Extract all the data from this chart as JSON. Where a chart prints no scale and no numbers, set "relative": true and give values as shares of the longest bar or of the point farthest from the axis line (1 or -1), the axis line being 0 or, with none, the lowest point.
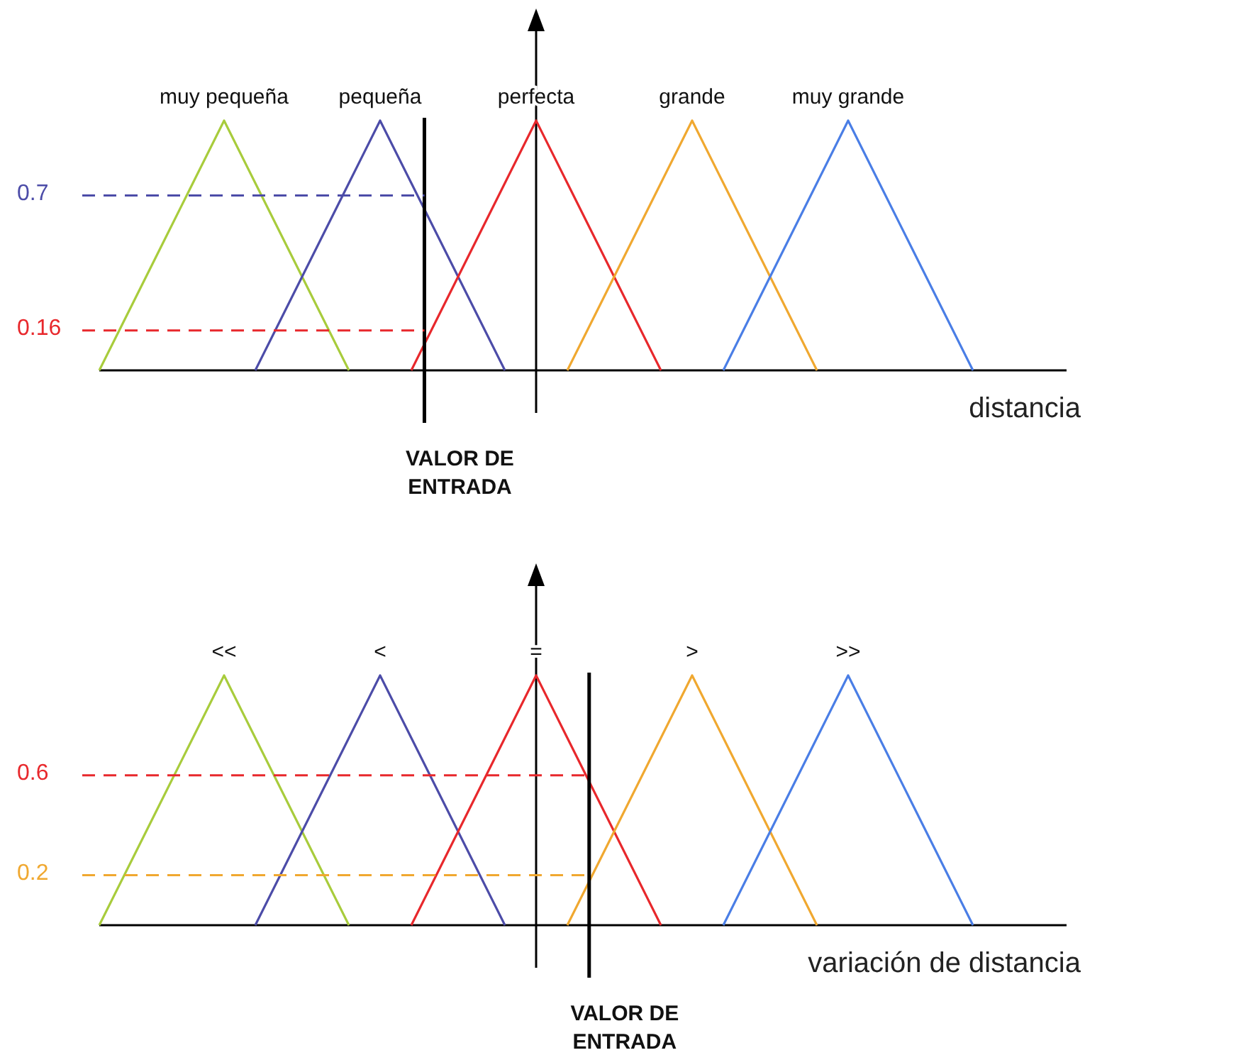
{
  "chart_data": [
    {
      "type": "line",
      "relative": true,
      "xlabel": "distancia",
      "tick_labels": false,
      "line_style": "solid",
      "annotations": [
        "VALOR DE ENTRADA"
      ],
      "categories": [
        null,
        null,
        null,
        null,
        null,
        null,
        null,
        null,
        null,
        null,
        null,
        null,
        null,
        null,
        null,
        null,
        null,
        null,
        null,
        null,
        null,
        null,
        null,
        null,
        null,
        null,
        null,
        null,
        null,
        null,
        null,
        null
      ],
      "series": [
        {
          "name": "muy pequeña",
          "color": "#a8cc3c",
          "values": [
            0,
            0.25,
            0.5,
            0.75,
            1,
            0.75,
            0.5,
            0.25,
            0,
            null,
            null,
            null,
            null,
            null,
            null,
            null,
            null,
            null,
            null,
            null,
            null,
            null,
            null,
            null,
            null,
            null,
            null,
            null,
            null,
            null,
            null,
            null
          ]
        },
        {
          "name": "pequeña",
          "color": "#4c4ca8",
          "values": [
            null,
            null,
            null,
            null,
            null,
            0,
            0.25,
            0.5,
            0.75,
            1,
            0.75,
            0.5,
            0.25,
            0,
            null,
            null,
            null,
            null,
            null,
            null,
            null,
            null,
            null,
            null,
            null,
            null,
            null,
            null,
            null,
            null,
            null,
            null
          ]
        },
        {
          "name": "perfecta",
          "color": "#e8282c",
          "values": [
            null,
            null,
            null,
            null,
            null,
            null,
            null,
            null,
            null,
            null,
            0,
            0.25,
            0.5,
            0.75,
            1,
            0.75,
            0.5,
            0.25,
            0,
            null,
            null,
            null,
            null,
            null,
            null,
            null,
            null,
            null,
            null,
            null,
            null,
            null
          ]
        },
        {
          "name": "grande",
          "color": "#f0a830",
          "values": [
            null,
            null,
            null,
            null,
            null,
            null,
            null,
            null,
            null,
            null,
            null,
            null,
            null,
            null,
            null,
            0,
            0.25,
            0.5,
            0.75,
            1,
            0.75,
            0.5,
            0.25,
            0,
            null,
            null,
            null,
            null,
            null,
            null,
            null,
            null
          ]
        },
        {
          "name": "muy grande",
          "color": "#4a7ee6",
          "values": [
            null,
            null,
            null,
            null,
            null,
            null,
            null,
            null,
            null,
            null,
            null,
            null,
            null,
            null,
            null,
            null,
            null,
            null,
            null,
            null,
            0,
            0.25,
            0.5,
            0.75,
            1,
            0.75,
            0.5,
            0.25,
            0,
            null,
            null,
            null
          ]
        }
      ],
      "ref_lines": [
        {
          "axis": "y",
          "value": 0.7,
          "label": "0.7",
          "color": "#4c4ca8",
          "line_style": "dashed"
        },
        {
          "axis": "y",
          "value": 0.16,
          "label": "0.16",
          "color": "#e8282c",
          "line_style": "dashed"
        }
      ]
    },
    {
      "type": "line",
      "relative": true,
      "xlabel": "variación de distancia",
      "tick_labels": false,
      "line_style": "solid",
      "annotations": [
        "VALOR DE ENTRADA"
      ],
      "categories": [
        null,
        null,
        null,
        null,
        null,
        null,
        null,
        null,
        null,
        null,
        null,
        null,
        null,
        null,
        null,
        null,
        null,
        null,
        null,
        null,
        null,
        null,
        null,
        null,
        null,
        null,
        null,
        null,
        null,
        null,
        null,
        null
      ],
      "series": [
        {
          "name": "<<",
          "color": "#a8cc3c",
          "values": [
            0,
            0.25,
            0.5,
            0.75,
            1,
            0.75,
            0.5,
            0.25,
            0,
            null,
            null,
            null,
            null,
            null,
            null,
            null,
            null,
            null,
            null,
            null,
            null,
            null,
            null,
            null,
            null,
            null,
            null,
            null,
            null,
            null,
            null,
            null
          ]
        },
        {
          "name": "<",
          "color": "#4c4ca8",
          "values": [
            null,
            null,
            null,
            null,
            null,
            0,
            0.25,
            0.5,
            0.75,
            1,
            0.75,
            0.5,
            0.25,
            0,
            null,
            null,
            null,
            null,
            null,
            null,
            null,
            null,
            null,
            null,
            null,
            null,
            null,
            null,
            null,
            null,
            null,
            null
          ]
        },
        {
          "name": "=",
          "color": "#e8282c",
          "values": [
            null,
            null,
            null,
            null,
            null,
            null,
            null,
            null,
            null,
            null,
            0,
            0.25,
            0.5,
            0.75,
            1,
            0.75,
            0.5,
            0.25,
            0,
            null,
            null,
            null,
            null,
            null,
            null,
            null,
            null,
            null,
            null,
            null,
            null,
            null
          ]
        },
        {
          "name": ">",
          "color": "#f0a830",
          "values": [
            null,
            null,
            null,
            null,
            null,
            null,
            null,
            null,
            null,
            null,
            null,
            null,
            null,
            null,
            null,
            0,
            0.25,
            0.5,
            0.75,
            1,
            0.75,
            0.5,
            0.25,
            0,
            null,
            null,
            null,
            null,
            null,
            null,
            null,
            null
          ]
        },
        {
          "name": ">>",
          "color": "#4a7ee6",
          "values": [
            null,
            null,
            null,
            null,
            null,
            null,
            null,
            null,
            null,
            null,
            null,
            null,
            null,
            null,
            null,
            null,
            null,
            null,
            null,
            null,
            0,
            0.25,
            0.5,
            0.75,
            1,
            0.75,
            0.5,
            0.25,
            0,
            null,
            null,
            null
          ]
        }
      ],
      "ref_lines": [
        {
          "axis": "y",
          "value": 0.6,
          "label": "0.6",
          "color": "#e8282c",
          "line_style": "dashed"
        },
        {
          "axis": "y",
          "value": 0.2,
          "label": "0.2",
          "color": "#f0a830",
          "line_style": "dashed"
        }
      ]
    }
  ]
}
